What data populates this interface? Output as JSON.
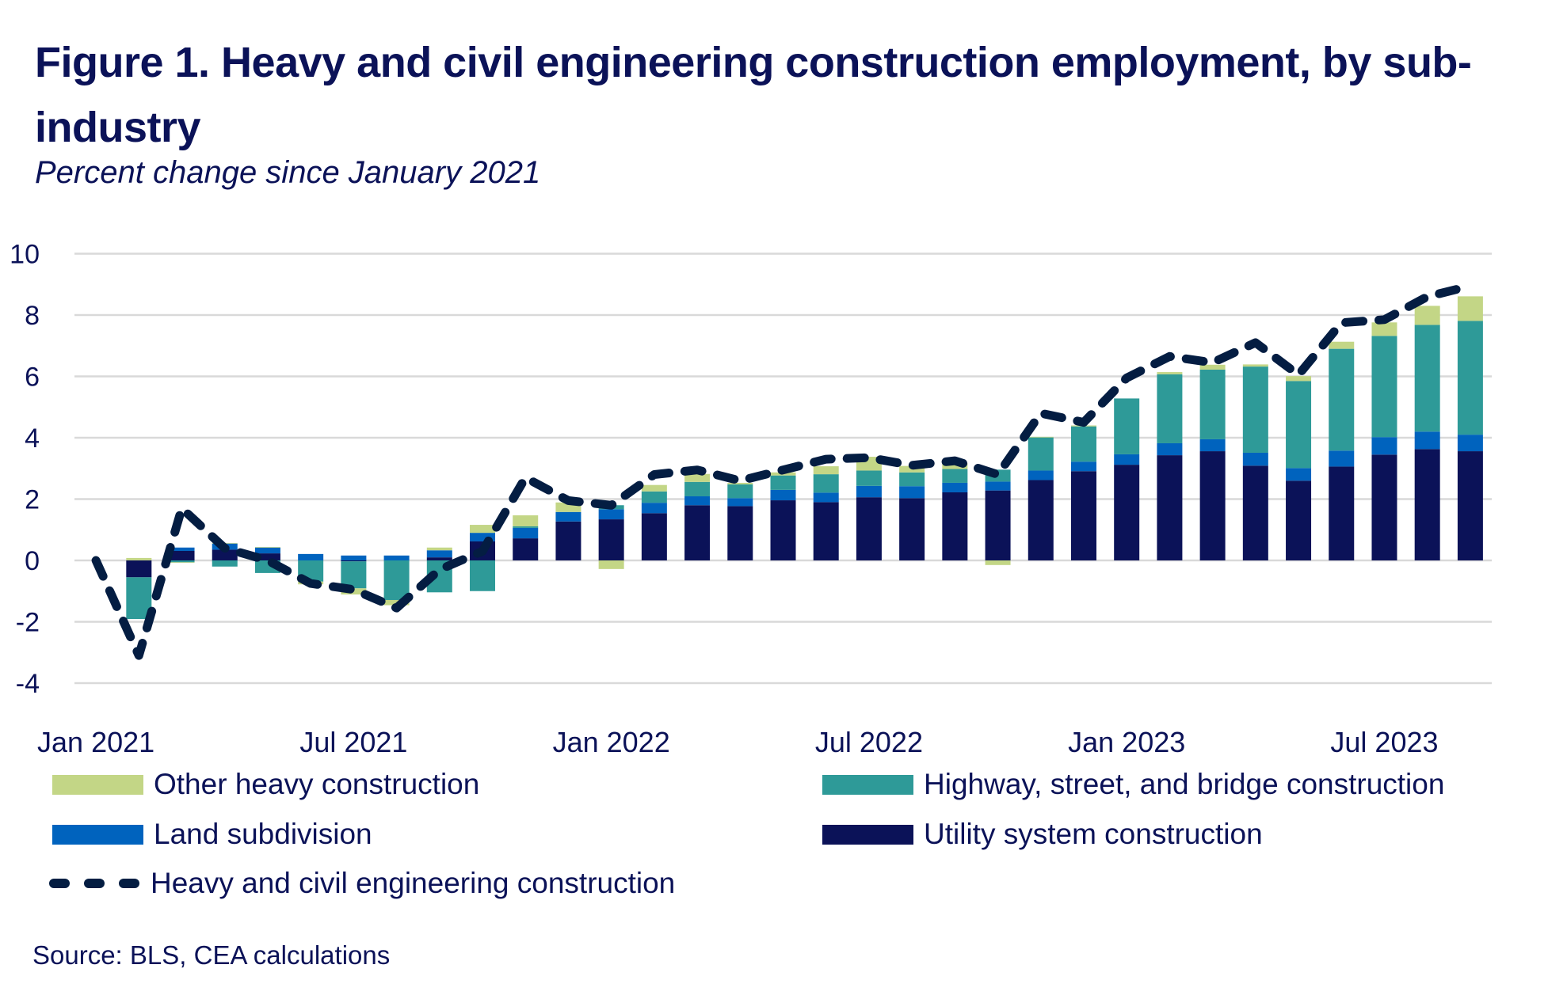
{
  "header": {
    "title": "Figure 1. Heavy and civil engineering construction employment, by sub-industry",
    "subtitle": "Percent change since January 2021"
  },
  "legend": {
    "other": "Other heavy construction",
    "highway": "Highway, street, and bridge construction",
    "land": "Land subdivision",
    "utility": "Utility system construction",
    "total": "Heavy and civil engineering construction"
  },
  "source": "Source: BLS, CEA calculations",
  "colors": {
    "utility": "#0b1258",
    "land": "#0063be",
    "highway": "#2e9a98",
    "other": "#c3d686",
    "total": "#041d42",
    "grid": "#d9d9d9",
    "text": "#0b1258"
  },
  "chart_data": {
    "type": "bar",
    "stacked": true,
    "title": "Figure 1. Heavy and civil engineering construction employment, by sub-industry",
    "subtitle": "Percent change since January 2021",
    "xlabel": "",
    "ylabel": "",
    "ylim": [
      -4,
      10
    ],
    "yticks": [
      -4,
      -2,
      0,
      2,
      4,
      6,
      8,
      10
    ],
    "ytick_labels": [
      "-4",
      "-2",
      "0",
      "2",
      "4",
      "6",
      "8",
      "10"
    ],
    "grid": true,
    "legend_position": "bottom",
    "x_tick_labels": [
      {
        "index": 0,
        "label": "Jan 2021"
      },
      {
        "index": 6,
        "label": "Jul 2021"
      },
      {
        "index": 12,
        "label": "Jan 2022"
      },
      {
        "index": 18,
        "label": "Jul 2022"
      },
      {
        "index": 24,
        "label": "Jan 2023"
      },
      {
        "index": 30,
        "label": "Jul 2023"
      }
    ],
    "categories": [
      "Jan 2021",
      "Feb 2021",
      "Mar 2021",
      "Apr 2021",
      "May 2021",
      "Jun 2021",
      "Jul 2021",
      "Aug 2021",
      "Sep 2021",
      "Oct 2021",
      "Nov 2021",
      "Dec 2021",
      "Jan 2022",
      "Feb 2022",
      "Mar 2022",
      "Apr 2022",
      "May 2022",
      "Jun 2022",
      "Jul 2022",
      "Aug 2022",
      "Sep 2022",
      "Oct 2022",
      "Nov 2022",
      "Dec 2022",
      "Jan 2023",
      "Feb 2023",
      "Mar 2023",
      "Apr 2023",
      "May 2023",
      "Jun 2023",
      "Jul 2023",
      "Aug 2023",
      "Sep 2023"
    ],
    "series": [
      {
        "key": "utility",
        "name": "Utility system construction",
        "type": "bar",
        "values": [
          0,
          -0.55,
          0.31,
          0.35,
          0.23,
          0.0,
          -0.03,
          0.0,
          0.1,
          0.62,
          0.72,
          1.27,
          1.34,
          1.54,
          1.8,
          1.77,
          1.96,
          1.9,
          2.06,
          2.03,
          2.22,
          2.28,
          2.62,
          2.91,
          3.12,
          3.43,
          3.56,
          3.09,
          2.6,
          3.06,
          3.45,
          3.63,
          3.56
        ]
      },
      {
        "key": "land",
        "name": "Land subdivision",
        "type": "bar",
        "values": [
          0,
          0.0,
          0.11,
          0.2,
          0.19,
          0.21,
          0.16,
          0.16,
          0.23,
          0.28,
          0.34,
          0.31,
          0.33,
          0.34,
          0.29,
          0.26,
          0.34,
          0.31,
          0.37,
          0.39,
          0.31,
          0.29,
          0.31,
          0.31,
          0.34,
          0.39,
          0.39,
          0.42,
          0.41,
          0.52,
          0.57,
          0.57,
          0.54
        ]
      },
      {
        "key": "highway",
        "name": "Highway, street, and bridge construction",
        "type": "bar",
        "values": [
          0,
          -1.36,
          -0.06,
          -0.2,
          -0.41,
          -0.69,
          -0.88,
          -1.29,
          -1.04,
          -1.0,
          0.05,
          0.0,
          0.13,
          0.37,
          0.47,
          0.45,
          0.47,
          0.6,
          0.5,
          0.45,
          0.45,
          0.39,
          1.08,
          1.15,
          1.82,
          2.25,
          2.27,
          2.81,
          2.84,
          3.32,
          3.3,
          3.48,
          3.71
        ]
      },
      {
        "key": "other",
        "name": "Other heavy construction",
        "type": "bar",
        "values": [
          0,
          0.08,
          -0.02,
          0.02,
          0.02,
          -0.09,
          -0.2,
          -0.17,
          0.09,
          0.26,
          0.36,
          0.31,
          -0.28,
          0.21,
          0.26,
          0.05,
          0.1,
          0.26,
          0.45,
          0.21,
          0.19,
          -0.15,
          0.02,
          0.03,
          0.0,
          0.07,
          0.16,
          0.07,
          0.16,
          0.23,
          0.44,
          0.62,
          0.8
        ]
      },
      {
        "key": "total",
        "name": "Heavy and civil engineering construction",
        "type": "line",
        "style": "dashed",
        "values": [
          0,
          -3.1,
          1.7,
          0.4,
          0.0,
          -0.75,
          -0.95,
          -1.55,
          -0.3,
          0.3,
          2.7,
          1.95,
          1.8,
          2.8,
          2.95,
          2.6,
          2.95,
          3.3,
          3.35,
          3.1,
          3.25,
          2.8,
          4.8,
          4.5,
          5.95,
          6.65,
          6.45,
          7.1,
          6.05,
          7.75,
          7.85,
          8.6,
          8.95
        ]
      }
    ]
  }
}
